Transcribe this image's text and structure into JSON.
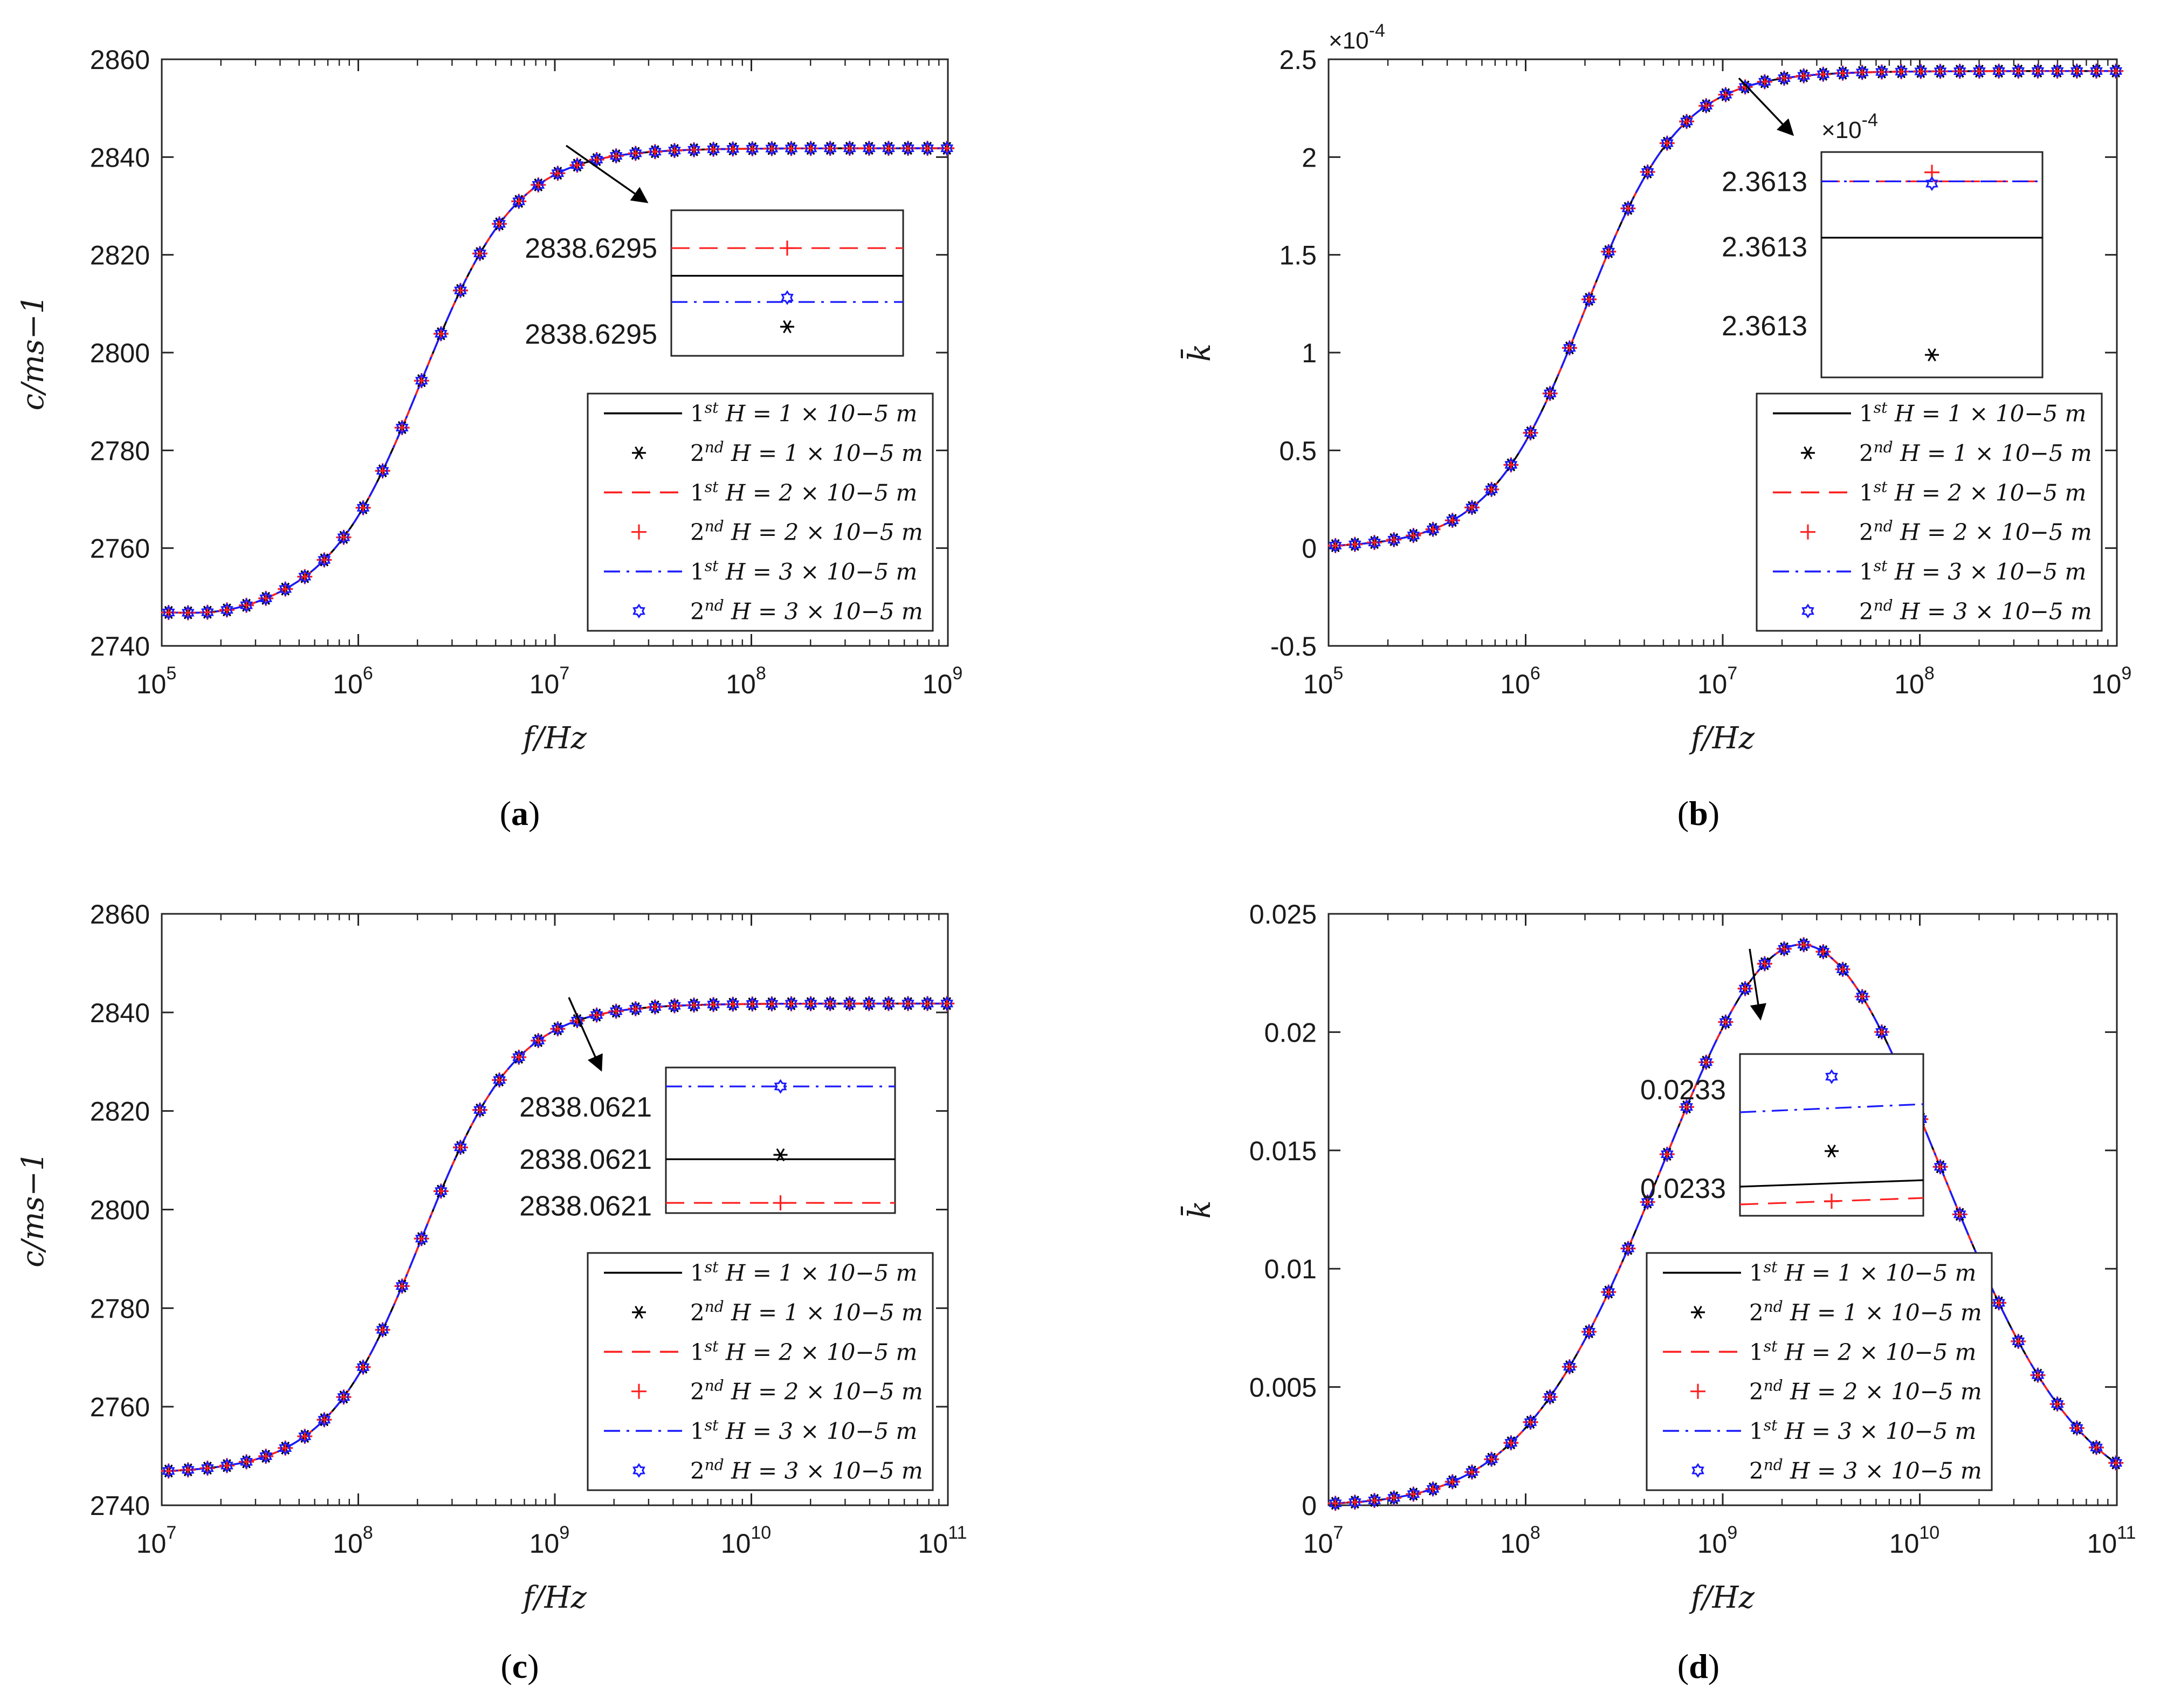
{
  "figure": {
    "label_letters": [
      "a",
      "b",
      "c",
      "d"
    ],
    "legend_prefixes": [
      "1st",
      "2nd",
      "1st",
      "2nd",
      "1st",
      "2nd"
    ],
    "legend_values": [
      "H = 1 × 10−5 m",
      "H = 1 × 10−5 m",
      "H = 2 × 10−5 m",
      "H = 2 × 10−5 m",
      "H = 3 × 10−5 m",
      "H = 3 × 10−5 m"
    ],
    "colors": {
      "black": "#000000",
      "red": "#ff2020",
      "blue": "#1a1aff",
      "axis": "#262626"
    }
  },
  "chart_data": [
    {
      "panel": "a",
      "type": "line",
      "xscale": "log",
      "xlabel": "f/Hz",
      "ylabel": "c/ms−1",
      "xlim": [
        100000,
        1000000000
      ],
      "ylim": [
        2740,
        2860
      ],
      "xticks": [
        "10",
        "10",
        "10",
        "10",
        "10"
      ],
      "xtick_exps": [
        "5",
        "6",
        "7",
        "8",
        "9"
      ],
      "yticks": [
        "2740",
        "2760",
        "2780",
        "2800",
        "2820",
        "2840",
        "2860"
      ],
      "curve": {
        "kind": "sigmoid",
        "low": 2746.8,
        "high": 2841.8,
        "f0": 2100000,
        "slope": 1.8,
        "dip": 2.0
      },
      "series": [
        {
          "name": "1st H = 1 × 10−5 m",
          "style": "solid",
          "color": "#000000"
        },
        {
          "name": "2nd H = 1 × 10−5 m",
          "style": "markers-star",
          "color": "#000000"
        },
        {
          "name": "1st H = 2 × 10−5 m",
          "style": "dashed",
          "color": "#ff2020"
        },
        {
          "name": "2nd H = 2 × 10−5 m",
          "style": "markers-plus",
          "color": "#ff2020"
        },
        {
          "name": "1st H = 3 × 10−5 m",
          "style": "dashdot",
          "color": "#1a1aff"
        },
        {
          "name": "2nd H = 3 × 10−5 m",
          "style": "markers-hexagram",
          "color": "#1a1aff"
        }
      ],
      "inset": {
        "labels": [
          "2838.6295",
          "2838.6295"
        ],
        "note": "zoom near f = 1e7 Hz, c = 2838.6295"
      }
    },
    {
      "panel": "b",
      "type": "line",
      "xscale": "log",
      "xlabel": "f/Hz",
      "ylabel": "k̄",
      "xlim": [
        100000,
        1000000000
      ],
      "ylim": [
        -0.5,
        2.5
      ],
      "y_multiplier": "×10",
      "y_multiplier_exp": "-4",
      "xticks": [
        "10",
        "10",
        "10",
        "10",
        "10"
      ],
      "xtick_exps": [
        "5",
        "6",
        "7",
        "8",
        "9"
      ],
      "yticks": [
        "-0.5",
        "0",
        "0.5",
        "1",
        "1.5",
        "2",
        "2.5"
      ],
      "curve": {
        "kind": "sigmoid",
        "low": 0.0,
        "high": 2.44,
        "f0": 2000000,
        "slope": 1.8,
        "dip": 0
      },
      "series": [
        {
          "name": "1st H = 1 × 10−5 m",
          "style": "solid",
          "color": "#000000"
        },
        {
          "name": "2nd H = 1 × 10−5 m",
          "style": "markers-star",
          "color": "#000000"
        },
        {
          "name": "1st H = 2 × 10−5 m",
          "style": "dashed",
          "color": "#ff2020"
        },
        {
          "name": "2nd H = 2 × 10−5 m",
          "style": "markers-plus",
          "color": "#ff2020"
        },
        {
          "name": "1st H = 3 × 10−5 m",
          "style": "dashdot",
          "color": "#1a1aff"
        },
        {
          "name": "2nd H = 3 × 10−5 m",
          "style": "markers-hexagram",
          "color": "#1a1aff"
        }
      ],
      "inset": {
        "labels": [
          "2.3613",
          "2.3613",
          "2.3613"
        ],
        "multiplier": "×10",
        "multiplier_exp": "-4"
      }
    },
    {
      "panel": "c",
      "type": "line",
      "xscale": "log",
      "xlabel": "f/Hz",
      "ylabel": "c/ms−1",
      "xlim": [
        10000000,
        100000000000
      ],
      "ylim": [
        2740,
        2860
      ],
      "xticks": [
        "10",
        "10",
        "10",
        "10",
        "10"
      ],
      "xtick_exps": [
        "7",
        "8",
        "9",
        "10",
        "11"
      ],
      "yticks": [
        "2740",
        "2760",
        "2780",
        "2800",
        "2820",
        "2840",
        "2860"
      ],
      "curve": {
        "kind": "sigmoid",
        "low": 2746.5,
        "high": 2841.8,
        "f0": 210000000,
        "slope": 1.8,
        "dip": 0
      },
      "series": [
        {
          "name": "1st H = 1 × 10−5 m",
          "style": "solid",
          "color": "#000000"
        },
        {
          "name": "2nd H = 1 × 10−5 m",
          "style": "markers-star",
          "color": "#000000"
        },
        {
          "name": "1st H = 2 × 10−5 m",
          "style": "dashed",
          "color": "#ff2020"
        },
        {
          "name": "2nd H = 2 × 10−5 m",
          "style": "markers-plus",
          "color": "#ff2020"
        },
        {
          "name": "1st H = 3 × 10−5 m",
          "style": "dashdot",
          "color": "#1a1aff"
        },
        {
          "name": "2nd H = 3 × 10−5 m",
          "style": "markers-hexagram",
          "color": "#1a1aff"
        }
      ],
      "inset": {
        "labels": [
          "2838.0621",
          "2838.0621",
          "2838.0621"
        ]
      }
    },
    {
      "panel": "d",
      "type": "line",
      "xscale": "log",
      "xlabel": "f/Hz",
      "ylabel": "k̄",
      "xlim": [
        10000000,
        100000000000
      ],
      "ylim": [
        0,
        0.025
      ],
      "xticks": [
        "10",
        "10",
        "10",
        "10",
        "10"
      ],
      "xtick_exps": [
        "7",
        "8",
        "9",
        "10",
        "11"
      ],
      "yticks": [
        "0",
        "0.005",
        "0.01",
        "0.015",
        "0.02",
        "0.025"
      ],
      "curve": {
        "kind": "peak",
        "peak": 0.0237,
        "f0": 2500000000,
        "slope": 0.9
      },
      "series": [
        {
          "name": "1st H = 1 × 10−5 m",
          "style": "solid",
          "color": "#000000"
        },
        {
          "name": "2nd H = 1 × 10−5 m",
          "style": "markers-star",
          "color": "#000000"
        },
        {
          "name": "1st H = 2 × 10−5 m",
          "style": "dashed",
          "color": "#ff2020"
        },
        {
          "name": "2nd H = 2 × 10−5 m",
          "style": "markers-plus",
          "color": "#ff2020"
        },
        {
          "name": "1st H = 3 × 10−5 m",
          "style": "dashdot",
          "color": "#1a1aff"
        },
        {
          "name": "2nd H = 3 × 10−5 m",
          "style": "markers-hexagram",
          "color": "#1a1aff"
        }
      ],
      "inset": {
        "labels": [
          "0.0233",
          "0.0233"
        ]
      }
    }
  ]
}
